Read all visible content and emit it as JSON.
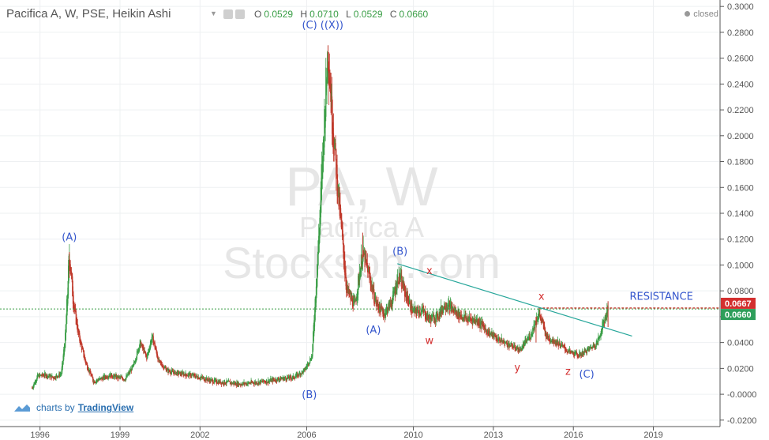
{
  "header": {
    "title": "Pacifica A, W, PSE, Heikin Ashi",
    "ohlc": [
      {
        "key": "O",
        "value": "0.0529"
      },
      {
        "key": "H",
        "value": "0.0710"
      },
      {
        "key": "L",
        "value": "0.0529"
      },
      {
        "key": "C",
        "value": "0.0660"
      }
    ],
    "status": "closed"
  },
  "watermark": {
    "line1": "PA, W",
    "line2": "Pacifica A",
    "line3": "Stocksph.com"
  },
  "brand": {
    "prefix": "charts by",
    "name": "TradingView"
  },
  "colors": {
    "up": "#3a9e46",
    "down": "#c0392b",
    "trendline": "#26a69a",
    "resistance": "#c0392b",
    "price_tag": "#2e9e5a",
    "resistance_tag": "#d32f2f",
    "wave_blue": "#3355cc",
    "wave_red": "#d32f2f"
  },
  "chart_data": {
    "type": "candlestick",
    "ylim": [
      -0.025,
      0.305
    ],
    "yticks": [
      "0.3000",
      "0.2800",
      "0.2600",
      "0.2400",
      "0.2200",
      "0.2000",
      "0.1800",
      "0.1600",
      "0.1400",
      "0.1200",
      "0.1000",
      "0.0800",
      "0.0600",
      "0.0400",
      "0.0200",
      "-0.0000",
      "-0.0200"
    ],
    "ytick_values": [
      0.3,
      0.28,
      0.26,
      0.24,
      0.22,
      0.2,
      0.18,
      0.16,
      0.14,
      0.12,
      0.1,
      0.08,
      0.06,
      0.04,
      0.02,
      0.0,
      -0.02
    ],
    "xlim": [
      1994.5,
      2021.5
    ],
    "xticks": [
      "1996",
      "1999",
      "2002",
      "2006",
      "2010",
      "2013",
      "2016",
      "2019"
    ],
    "xtick_values": [
      1996,
      1999,
      2002,
      2006,
      2010,
      2013,
      2016,
      2019
    ],
    "series": [
      {
        "points": [
          [
            1995.7,
            0.005
          ],
          [
            1995.9,
            0.014
          ],
          [
            1996.2,
            0.015
          ],
          [
            1996.5,
            0.013
          ],
          [
            1996.8,
            0.016
          ],
          [
            1996.95,
            0.045
          ],
          [
            1997.1,
            0.11
          ],
          [
            1997.25,
            0.07
          ],
          [
            1997.45,
            0.045
          ],
          [
            1997.7,
            0.025
          ],
          [
            1998.0,
            0.01
          ],
          [
            1998.3,
            0.012
          ],
          [
            1998.6,
            0.015
          ],
          [
            1998.9,
            0.013
          ],
          [
            1999.2,
            0.012
          ],
          [
            1999.5,
            0.022
          ],
          [
            1999.75,
            0.04
          ],
          [
            2000.0,
            0.028
          ],
          [
            2000.2,
            0.045
          ],
          [
            2000.45,
            0.025
          ],
          [
            2000.8,
            0.018
          ],
          [
            2001.2,
            0.016
          ],
          [
            2001.6,
            0.015
          ],
          [
            2002.0,
            0.013
          ],
          [
            2002.5,
            0.01
          ],
          [
            2003.0,
            0.009
          ],
          [
            2003.5,
            0.008
          ],
          [
            2004.0,
            0.009
          ],
          [
            2004.5,
            0.01
          ],
          [
            2005.0,
            0.012
          ],
          [
            2005.5,
            0.013
          ],
          [
            2005.9,
            0.018
          ],
          [
            2006.2,
            0.03
          ],
          [
            2006.5,
            0.14
          ],
          [
            2006.7,
            0.23
          ],
          [
            2006.8,
            0.268
          ],
          [
            2006.95,
            0.215
          ],
          [
            2007.2,
            0.15
          ],
          [
            2007.5,
            0.08
          ],
          [
            2007.8,
            0.068
          ],
          [
            2008.1,
            0.11
          ],
          [
            2008.35,
            0.09
          ],
          [
            2008.6,
            0.07
          ],
          [
            2008.9,
            0.062
          ],
          [
            2009.2,
            0.072
          ],
          [
            2009.45,
            0.092
          ],
          [
            2009.75,
            0.075
          ],
          [
            2010.0,
            0.063
          ],
          [
            2010.3,
            0.065
          ],
          [
            2010.6,
            0.058
          ],
          [
            2010.9,
            0.06
          ],
          [
            2011.2,
            0.07
          ],
          [
            2011.6,
            0.063
          ],
          [
            2012.0,
            0.058
          ],
          [
            2012.4,
            0.057
          ],
          [
            2012.8,
            0.048
          ],
          [
            2013.2,
            0.042
          ],
          [
            2013.6,
            0.038
          ],
          [
            2014.0,
            0.034
          ],
          [
            2014.4,
            0.046
          ],
          [
            2014.7,
            0.063
          ],
          [
            2015.0,
            0.044
          ],
          [
            2015.4,
            0.04
          ],
          [
            2015.8,
            0.033
          ],
          [
            2016.2,
            0.03
          ],
          [
            2016.6,
            0.035
          ],
          [
            2016.9,
            0.04
          ],
          [
            2017.2,
            0.06
          ],
          [
            2017.3,
            0.066
          ]
        ]
      }
    ],
    "trendline": [
      [
        2009.4,
        0.101
      ],
      [
        2018.2,
        0.045
      ]
    ],
    "resistance_level": 0.0667,
    "last_price": 0.066,
    "price_tags": [
      "0.0667",
      "0.0660"
    ],
    "annotations": [
      {
        "text": "(A)",
        "x": 1997.1,
        "y": 0.119,
        "color": "blue"
      },
      {
        "text": "(C) ((X))",
        "x": 2006.6,
        "y": 0.283,
        "color": "blue"
      },
      {
        "text": "(B)",
        "x": 2006.1,
        "y": -0.003,
        "color": "blue"
      },
      {
        "text": "(A)",
        "x": 2008.5,
        "y": 0.047,
        "color": "blue"
      },
      {
        "text": "(B)",
        "x": 2009.5,
        "y": 0.108,
        "color": "blue"
      },
      {
        "text": "x",
        "x": 2010.6,
        "y": 0.093,
        "color": "red"
      },
      {
        "text": "w",
        "x": 2010.6,
        "y": 0.039,
        "color": "red"
      },
      {
        "text": "x",
        "x": 2014.8,
        "y": 0.073,
        "color": "red"
      },
      {
        "text": "y",
        "x": 2013.9,
        "y": 0.018,
        "color": "red"
      },
      {
        "text": "z",
        "x": 2015.8,
        "y": 0.015,
        "color": "red"
      },
      {
        "text": "(C)",
        "x": 2016.5,
        "y": 0.013,
        "color": "blue"
      },
      {
        "text": "RESISTANCE",
        "x": 2019.3,
        "y": 0.073,
        "color": "blue"
      }
    ]
  }
}
